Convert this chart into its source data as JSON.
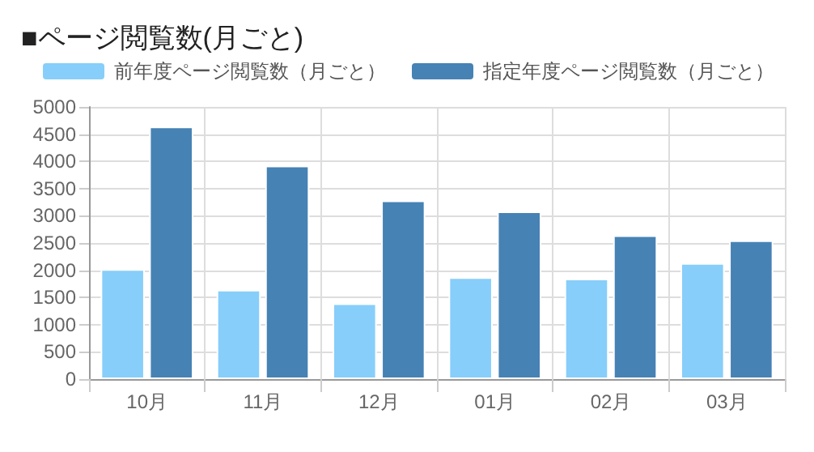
{
  "chart_data": {
    "type": "bar",
    "title": "■ページ閲覧数(月ごと)",
    "categories": [
      "10月",
      "11月",
      "12月",
      "01月",
      "02月",
      "03月"
    ],
    "series": [
      {
        "name": "前年度ページ閲覧数（月ごと）",
        "color": "#87cefa",
        "values": [
          2020,
          1640,
          1390,
          1870,
          1845,
          2130
        ]
      },
      {
        "name": "指定年度ページ閲覧数（月ごと）",
        "color": "#4682b4",
        "values": [
          4640,
          3920,
          3280,
          3080,
          2640,
          2550
        ]
      }
    ],
    "ylim": [
      0,
      5000
    ],
    "yticks": [
      0,
      500,
      1000,
      1500,
      2000,
      2500,
      3000,
      3500,
      4000,
      4500,
      5000
    ],
    "grid": true,
    "legend": "top"
  }
}
